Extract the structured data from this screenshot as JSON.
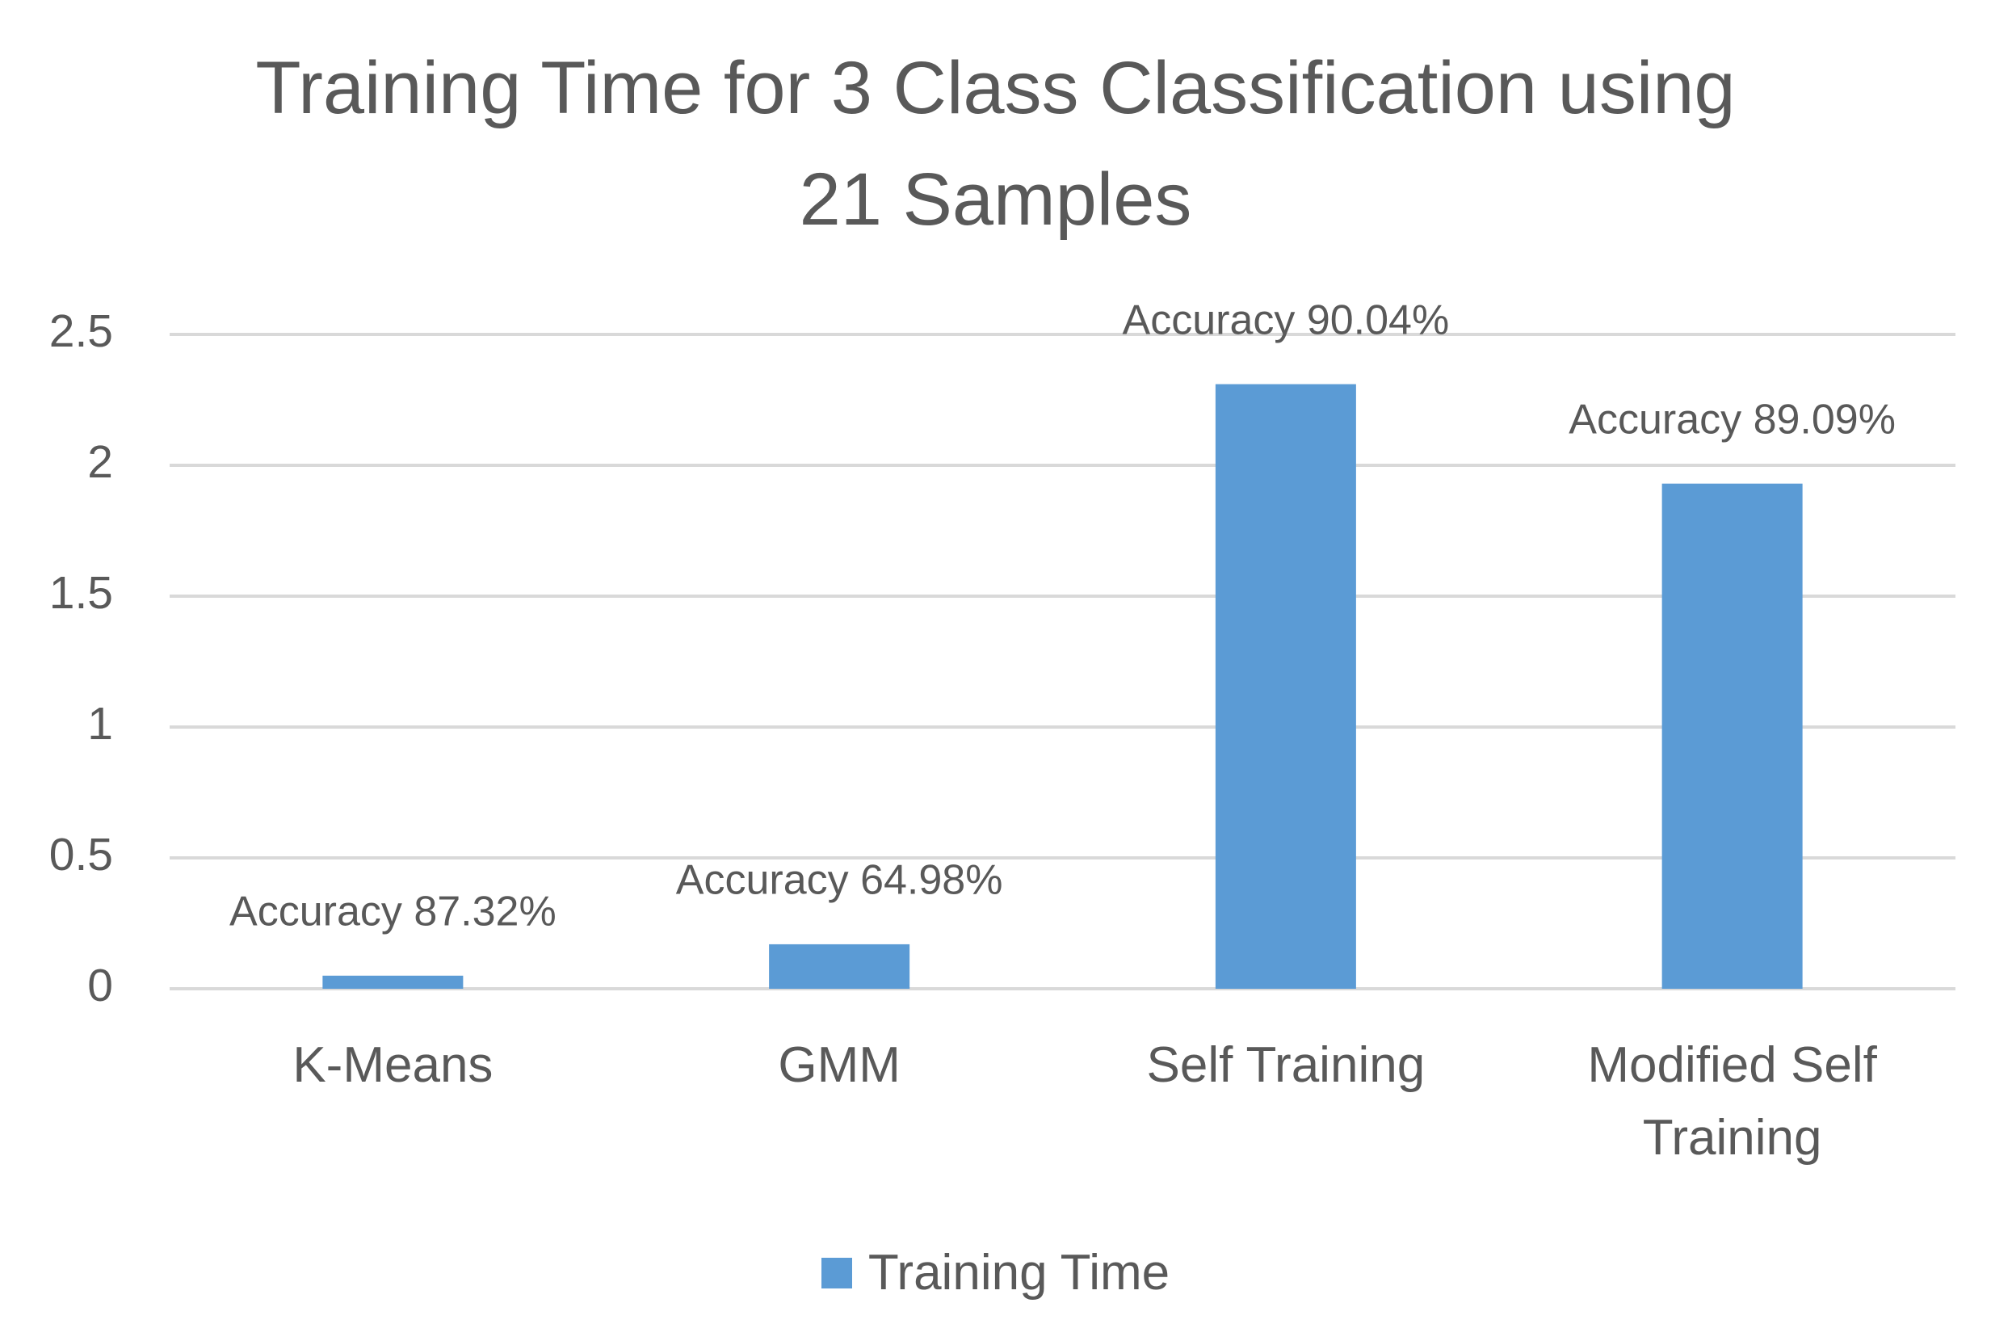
{
  "chart_data": {
    "type": "bar",
    "title": "Training Time for 3 Class Classification using 21 Samples",
    "categories": [
      "K-Means",
      "GMM",
      "Self Training",
      "Modified Self Training"
    ],
    "series": [
      {
        "name": "Training Time",
        "color": "#5b9bd5",
        "values": [
          0.05,
          0.17,
          2.31,
          1.93
        ]
      }
    ],
    "annotations": [
      "Accuracy 87.32%",
      "Accuracy 64.98%",
      "Accuracy 90.04%",
      "Accuracy 89.09%"
    ],
    "ylim": [
      0,
      2.5
    ],
    "yticks": [
      0,
      0.5,
      1,
      1.5,
      2,
      2.5
    ],
    "grid": true,
    "legend": "bottom"
  }
}
